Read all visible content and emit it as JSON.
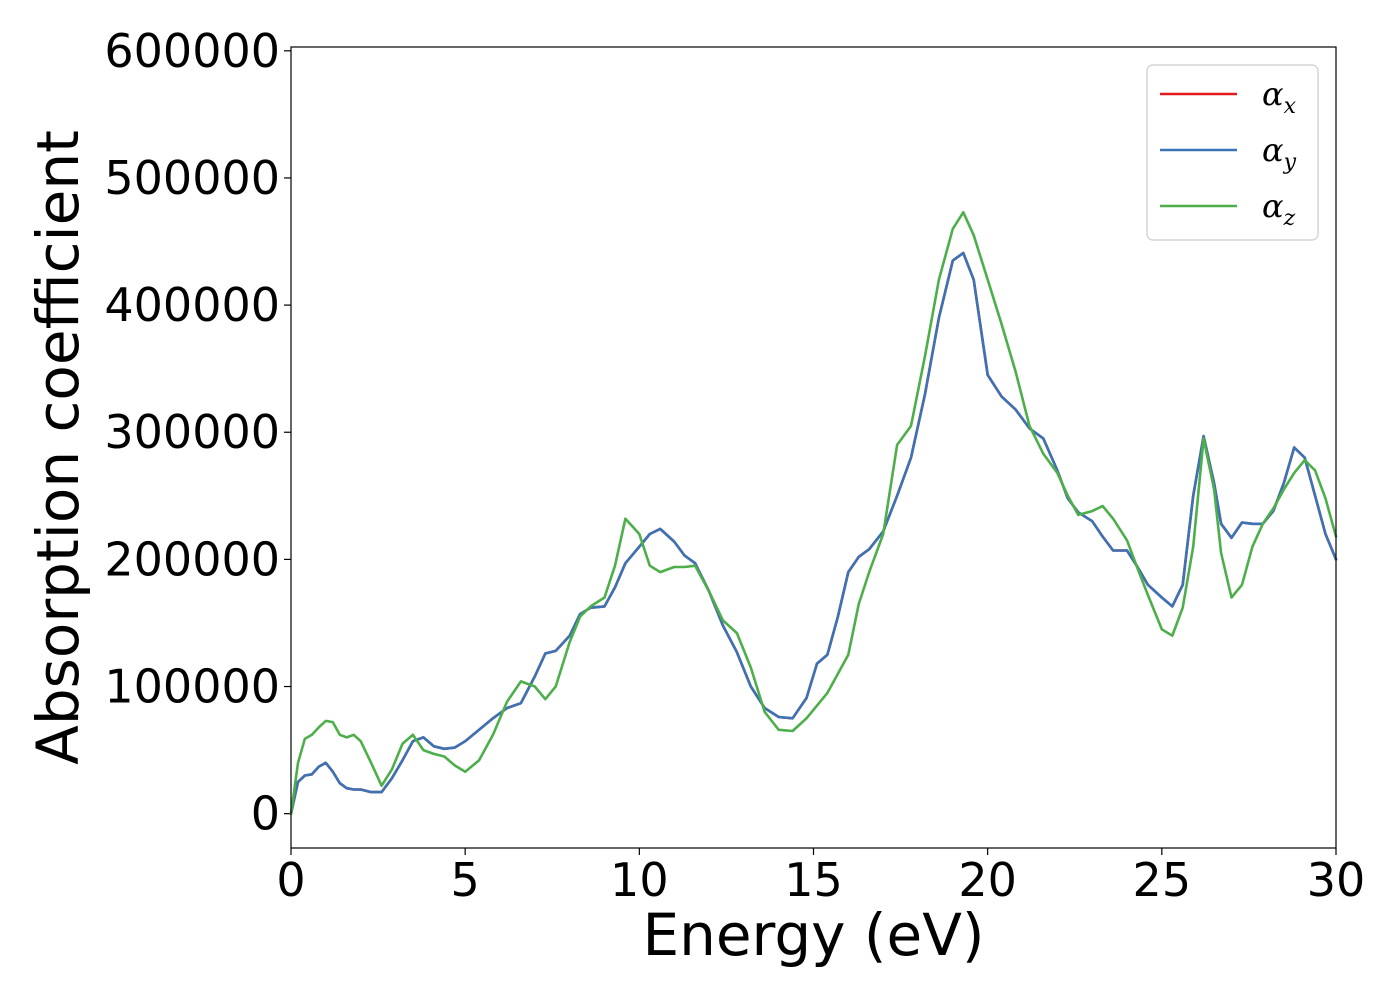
{
  "chart_data": {
    "type": "line",
    "xlabel": "Energy (eV)",
    "ylabel": "Absorption coefficient",
    "xlim": [
      0,
      30
    ],
    "ylim": [
      -27000,
      603000
    ],
    "xticks": [
      0,
      5,
      10,
      15,
      20,
      25,
      30
    ],
    "yticks": [
      0,
      100000,
      200000,
      300000,
      400000,
      500000,
      600000
    ],
    "grid": false,
    "legend_position": "top-right",
    "series": [
      {
        "symbol": "α",
        "subscript": "x",
        "color": "#e41a1c",
        "x": [
          0,
          0.2,
          0.4,
          0.6,
          0.8,
          1.0,
          1.2,
          1.4,
          1.6,
          1.8,
          2.0,
          2.3,
          2.6,
          2.9,
          3.2,
          3.5,
          3.8,
          4.1,
          4.4,
          4.7,
          5.0,
          5.4,
          5.8,
          6.2,
          6.6,
          7.0,
          7.3,
          7.6,
          8.0,
          8.3,
          8.6,
          9.0,
          9.3,
          9.6,
          10.0,
          10.3,
          10.6,
          11.0,
          11.3,
          11.6,
          12.0,
          12.4,
          12.8,
          13.2,
          13.6,
          14.0,
          14.4,
          14.8,
          15.1,
          15.4,
          15.7,
          16.0,
          16.3,
          16.6,
          17.0,
          17.4,
          17.8,
          18.2,
          18.6,
          19.0,
          19.3,
          19.6,
          20.0,
          20.4,
          20.8,
          21.2,
          21.6,
          22.0,
          22.3,
          22.6,
          23.0,
          23.3,
          23.6,
          24.0,
          24.3,
          24.6,
          25.0,
          25.3,
          25.6,
          25.9,
          26.2,
          26.5,
          26.7,
          27.0,
          27.3,
          27.6,
          27.9,
          28.2,
          28.5,
          28.8,
          29.1,
          29.4,
          29.7,
          30.0
        ],
        "y": [
          0,
          25000,
          30000,
          31000,
          37000,
          40000,
          33000,
          24000,
          20000,
          19000,
          19000,
          17000,
          17000,
          28000,
          42000,
          57000,
          60000,
          53000,
          51000,
          52000,
          57000,
          66000,
          75000,
          83000,
          87000,
          108000,
          126000,
          128000,
          140000,
          157000,
          162000,
          163000,
          178000,
          197000,
          210000,
          220000,
          224000,
          214000,
          203000,
          197000,
          175000,
          148000,
          127000,
          100000,
          83000,
          76000,
          75000,
          91000,
          118000,
          125000,
          155000,
          190000,
          202000,
          208000,
          222000,
          250000,
          280000,
          330000,
          390000,
          435000,
          441000,
          420000,
          345000,
          328000,
          318000,
          303000,
          295000,
          270000,
          248000,
          237000,
          230000,
          218000,
          207000,
          207000,
          194000,
          180000,
          170000,
          163000,
          180000,
          250000,
          297000,
          260000,
          228000,
          217000,
          229000,
          228000,
          228000,
          238000,
          260000,
          288000,
          280000,
          250000,
          220000,
          200000
        ]
      },
      {
        "symbol": "α",
        "subscript": "y",
        "color": "#3a73b6",
        "x": [
          0,
          0.2,
          0.4,
          0.6,
          0.8,
          1.0,
          1.2,
          1.4,
          1.6,
          1.8,
          2.0,
          2.3,
          2.6,
          2.9,
          3.2,
          3.5,
          3.8,
          4.1,
          4.4,
          4.7,
          5.0,
          5.4,
          5.8,
          6.2,
          6.6,
          7.0,
          7.3,
          7.6,
          8.0,
          8.3,
          8.6,
          9.0,
          9.3,
          9.6,
          10.0,
          10.3,
          10.6,
          11.0,
          11.3,
          11.6,
          12.0,
          12.4,
          12.8,
          13.2,
          13.6,
          14.0,
          14.4,
          14.8,
          15.1,
          15.4,
          15.7,
          16.0,
          16.3,
          16.6,
          17.0,
          17.4,
          17.8,
          18.2,
          18.6,
          19.0,
          19.3,
          19.6,
          20.0,
          20.4,
          20.8,
          21.2,
          21.6,
          22.0,
          22.3,
          22.6,
          23.0,
          23.3,
          23.6,
          24.0,
          24.3,
          24.6,
          25.0,
          25.3,
          25.6,
          25.9,
          26.2,
          26.5,
          26.7,
          27.0,
          27.3,
          27.6,
          27.9,
          28.2,
          28.5,
          28.8,
          29.1,
          29.4,
          29.7,
          30.0
        ],
        "y": [
          0,
          25000,
          30000,
          31000,
          37000,
          40000,
          33000,
          24000,
          20000,
          19000,
          19000,
          17000,
          17000,
          28000,
          42000,
          57000,
          60000,
          53000,
          51000,
          52000,
          57000,
          66000,
          75000,
          83000,
          87000,
          108000,
          126000,
          128000,
          140000,
          157000,
          162000,
          163000,
          178000,
          197000,
          210000,
          220000,
          224000,
          214000,
          203000,
          197000,
          175000,
          148000,
          127000,
          100000,
          83000,
          76000,
          75000,
          91000,
          118000,
          125000,
          155000,
          190000,
          202000,
          208000,
          222000,
          250000,
          280000,
          330000,
          390000,
          435000,
          441000,
          420000,
          345000,
          328000,
          318000,
          303000,
          295000,
          270000,
          248000,
          237000,
          230000,
          218000,
          207000,
          207000,
          194000,
          180000,
          170000,
          163000,
          180000,
          250000,
          297000,
          260000,
          228000,
          217000,
          229000,
          228000,
          228000,
          238000,
          260000,
          288000,
          280000,
          250000,
          220000,
          200000
        ]
      },
      {
        "symbol": "α",
        "subscript": "z",
        "color": "#4daf4a",
        "x": [
          0,
          0.2,
          0.4,
          0.6,
          0.8,
          1.0,
          1.2,
          1.4,
          1.6,
          1.8,
          2.0,
          2.3,
          2.6,
          2.9,
          3.2,
          3.5,
          3.8,
          4.1,
          4.4,
          4.7,
          5.0,
          5.4,
          5.8,
          6.2,
          6.6,
          7.0,
          7.3,
          7.6,
          8.0,
          8.3,
          8.6,
          9.0,
          9.3,
          9.6,
          10.0,
          10.3,
          10.6,
          11.0,
          11.3,
          11.6,
          12.0,
          12.4,
          12.8,
          13.2,
          13.6,
          14.0,
          14.4,
          14.8,
          15.1,
          15.4,
          15.7,
          16.0,
          16.3,
          16.6,
          17.0,
          17.4,
          17.8,
          18.2,
          18.6,
          19.0,
          19.3,
          19.6,
          20.0,
          20.4,
          20.8,
          21.2,
          21.6,
          22.0,
          22.3,
          22.6,
          23.0,
          23.3,
          23.6,
          24.0,
          24.3,
          24.6,
          25.0,
          25.3,
          25.6,
          25.9,
          26.2,
          26.5,
          26.7,
          27.0,
          27.3,
          27.6,
          27.9,
          28.2,
          28.5,
          28.8,
          29.1,
          29.4,
          29.7,
          30.0
        ],
        "y": [
          0,
          40000,
          59000,
          62000,
          68000,
          73000,
          72000,
          62000,
          60000,
          62000,
          57000,
          40000,
          22000,
          35000,
          55000,
          62000,
          50000,
          47000,
          45000,
          38000,
          33000,
          42000,
          62000,
          88000,
          104000,
          100000,
          90000,
          100000,
          135000,
          155000,
          163000,
          170000,
          195000,
          232000,
          220000,
          195000,
          190000,
          194000,
          194000,
          195000,
          175000,
          152000,
          142000,
          115000,
          80000,
          66000,
          65000,
          75000,
          85000,
          95000,
          110000,
          125000,
          165000,
          190000,
          220000,
          290000,
          305000,
          360000,
          420000,
          460000,
          473000,
          455000,
          420000,
          385000,
          348000,
          305000,
          283000,
          268000,
          250000,
          235000,
          238000,
          242000,
          232000,
          215000,
          193000,
          172000,
          145000,
          140000,
          162000,
          210000,
          295000,
          255000,
          205000,
          170000,
          180000,
          210000,
          228000,
          240000,
          255000,
          268000,
          278000,
          270000,
          248000,
          218000
        ]
      }
    ]
  }
}
